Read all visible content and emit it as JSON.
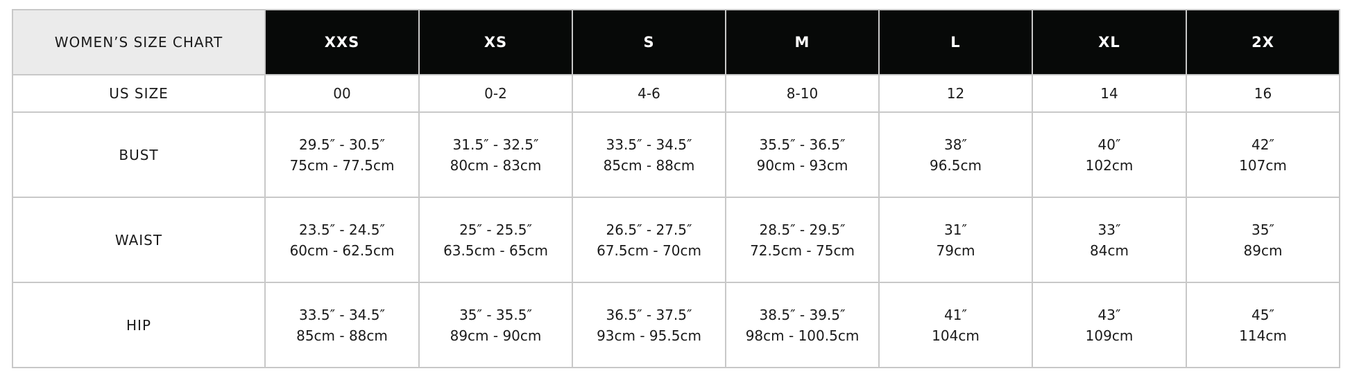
{
  "table": {
    "title": "WOMEN’S SIZE CHART",
    "sizes": [
      "XXS",
      "XS",
      "S",
      "M",
      "L",
      "XL",
      "2X"
    ],
    "rows": [
      {
        "label": "US SIZE",
        "cells": [
          [
            "00"
          ],
          [
            "0-2"
          ],
          [
            "4-6"
          ],
          [
            "8-10"
          ],
          [
            "12"
          ],
          [
            "14"
          ],
          [
            "16"
          ]
        ]
      },
      {
        "label": "BUST",
        "cells": [
          [
            "29.5″ - 30.5″",
            "75cm - 77.5cm"
          ],
          [
            "31.5″ - 32.5″",
            "80cm - 83cm"
          ],
          [
            "33.5″ - 34.5″",
            "85cm - 88cm"
          ],
          [
            "35.5″ - 36.5″",
            "90cm - 93cm"
          ],
          [
            "38″",
            "96.5cm"
          ],
          [
            "40″",
            "102cm"
          ],
          [
            "42″",
            "107cm"
          ]
        ]
      },
      {
        "label": "WAIST",
        "cells": [
          [
            "23.5″ - 24.5″",
            "60cm - 62.5cm"
          ],
          [
            "25″ - 25.5″",
            "63.5cm - 65cm"
          ],
          [
            "26.5″ - 27.5″",
            "67.5cm - 70cm"
          ],
          [
            "28.5″ - 29.5″",
            "72.5cm - 75cm"
          ],
          [
            "31″",
            "79cm"
          ],
          [
            "33″",
            "84cm"
          ],
          [
            "35″",
            "89cm"
          ]
        ]
      },
      {
        "label": "HIP",
        "cells": [
          [
            "33.5″ - 34.5″",
            "85cm - 88cm"
          ],
          [
            "35″ - 35.5″",
            "89cm - 90cm"
          ],
          [
            "36.5″ - 37.5″",
            "93cm - 95.5cm"
          ],
          [
            "38.5″ - 39.5″",
            "98cm - 100.5cm"
          ],
          [
            "41″",
            "104cm"
          ],
          [
            "43″",
            "109cm"
          ],
          [
            "45″",
            "114cm"
          ]
        ]
      }
    ]
  },
  "colors": {
    "header_bg": "#070908",
    "corner_bg": "#ebebeb",
    "border": "#c8c8c8"
  }
}
